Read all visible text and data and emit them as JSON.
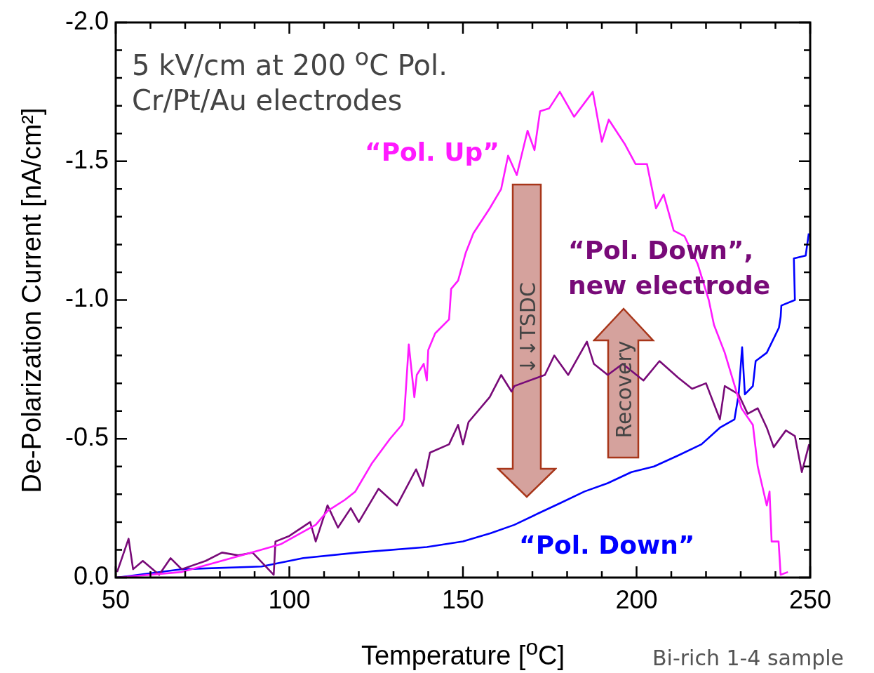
{
  "chart_data": {
    "type": "line",
    "xlabel": "Temperature [$^{o}$C]",
    "ylabel": "De-Polarization Current [nA/cm²]",
    "annotations": [
      "5 kV/cm at 200 $^{o}$C Pol.",
      "Cr/Pt/Au electrodes",
      "↓↓TSDC",
      "Recovery",
      "Bi-rich 1-4 sample"
    ],
    "xlim": [
      50,
      250
    ],
    "ylim": [
      0,
      -2
    ],
    "xticks": [
      50,
      {
        "value": 60,
        "label": null
      },
      {
        "value": 70,
        "label": null
      },
      {
        "value": 80,
        "label": null
      },
      {
        "value": 90,
        "label": null
      },
      100,
      {
        "value": 110,
        "label": null
      },
      {
        "value": 120,
        "label": null
      },
      {
        "value": 130,
        "label": null
      },
      {
        "value": 140,
        "label": null
      },
      150,
      {
        "value": 160,
        "label": null
      },
      {
        "value": 170,
        "label": null
      },
      {
        "value": 180,
        "label": null
      },
      {
        "value": 190,
        "label": null
      },
      200,
      {
        "value": 210,
        "label": null
      },
      {
        "value": 220,
        "label": null
      },
      {
        "value": 230,
        "label": null
      },
      {
        "value": 240,
        "label": null
      },
      250
    ],
    "yticks": [
      {
        "value": 0,
        "label": "0.0"
      },
      {
        "value": -0.1,
        "label": null
      },
      {
        "value": -0.2,
        "label": null
      },
      {
        "value": -0.3,
        "label": null
      },
      {
        "value": -0.4,
        "label": null
      },
      {
        "value": -0.5,
        "label": "-0.5"
      },
      {
        "value": -0.6,
        "label": null
      },
      {
        "value": -0.7,
        "label": null
      },
      {
        "value": -0.8,
        "label": null
      },
      {
        "value": -0.9,
        "label": null
      },
      {
        "value": -1,
        "label": "-1.0"
      },
      {
        "value": -1.1,
        "label": null
      },
      {
        "value": -1.2,
        "label": null
      },
      {
        "value": -1.3,
        "label": null
      },
      {
        "value": -1.4,
        "label": null
      },
      {
        "value": -1.5,
        "label": "-1.5"
      },
      {
        "value": -1.6,
        "label": null
      },
      {
        "value": -1.7,
        "label": null
      },
      {
        "value": -1.8,
        "label": null
      },
      {
        "value": -1.9,
        "label": null
      },
      {
        "value": -2,
        "label": "-2.0"
      }
    ],
    "grid": false,
    "legend": false,
    "marker": "none",
    "series": [
      {
        "name": "“Pol. Up”",
        "color": "#ff1aff",
        "x": [
          50.4,
          69,
          89,
          97.5,
          107.6,
          111,
          116,
          119,
          123.7,
          129,
          132.4,
          133,
          134.4,
          136,
          136.7,
          138.7,
          139.6,
          140,
          142,
          146,
          146.6,
          148.6,
          150.8,
          153,
          157.7,
          161,
          163,
          165.5,
          168.6,
          170.6,
          172.2,
          174.8,
          177.9,
          182,
          187.4,
          190,
          192,
          196.7,
          199.7,
          203,
          205.6,
          207.8,
          210.7,
          213.8,
          217.6,
          220.8,
          222.3,
          225.4,
          227.8,
          230.2,
          233.5,
          234.9,
          237.5,
          238.3,
          238.9,
          240.9,
          241.5,
          243.6
        ],
        "values": [
          0,
          -0.02,
          -0.09,
          -0.12,
          -0.19,
          -0.24,
          -0.28,
          -0.31,
          -0.41,
          -0.5,
          -0.55,
          -0.57,
          -0.84,
          -0.65,
          -0.73,
          -0.77,
          -0.71,
          -0.82,
          -0.88,
          -0.93,
          -1.04,
          -1.07,
          -1.17,
          -1.24,
          -1.33,
          -1.4,
          -1.52,
          -1.45,
          -1.61,
          -1.54,
          -1.68,
          -1.69,
          -1.75,
          -1.66,
          -1.75,
          -1.57,
          -1.65,
          -1.56,
          -1.49,
          -1.49,
          -1.33,
          -1.38,
          -1.25,
          -1.23,
          -1.13,
          -1,
          -0.91,
          -0.81,
          -0.71,
          -0.61,
          -0.55,
          -0.4,
          -0.26,
          -0.31,
          -0.13,
          -0.13,
          -0.01,
          -0.02
        ]
      },
      {
        "name": "“Pol. Down”, new electrode",
        "color": "#780a78",
        "x": [
          50.4,
          53.7,
          55,
          57.8,
          62.5,
          65.8,
          69,
          75.9,
          80.6,
          85.3,
          89.4,
          95.5,
          96,
          100,
          106,
          107.6,
          111,
          114,
          117.7,
          120,
          125.7,
          128.3,
          131,
          136.5,
          138.5,
          140.5,
          146,
          148.6,
          150,
          151.6,
          157.7,
          161,
          164,
          164.8,
          173.6,
          176.3,
          180.3,
          185.7,
          187.7,
          191.7,
          196,
          202,
          206.6,
          212,
          216,
          220,
          224,
          225.4,
          229.4,
          232,
          234.9,
          237.5,
          239.5,
          243,
          245.6,
          247.6,
          249.7
        ],
        "values": [
          -0.02,
          -0.14,
          -0.03,
          -0.06,
          -0.01,
          -0.07,
          -0.03,
          -0.06,
          -0.09,
          -0.08,
          -0.09,
          -0.01,
          -0.13,
          -0.15,
          -0.2,
          -0.13,
          -0.26,
          -0.18,
          -0.25,
          -0.2,
          -0.32,
          -0.29,
          -0.26,
          -0.39,
          -0.33,
          -0.45,
          -0.48,
          -0.55,
          -0.48,
          -0.56,
          -0.65,
          -0.73,
          -0.67,
          -0.69,
          -0.73,
          -0.8,
          -0.73,
          -0.85,
          -0.77,
          -0.73,
          -0.77,
          -0.71,
          -0.78,
          -0.72,
          -0.68,
          -0.7,
          -0.57,
          -0.69,
          -0.66,
          -0.59,
          -0.61,
          -0.54,
          -0.47,
          -0.53,
          -0.51,
          -0.38,
          -0.48
        ]
      },
      {
        "name": "“Pol. Down”",
        "color": "#0000ff",
        "x": [
          50.4,
          69,
          92,
          96,
          104,
          119.7,
          139.6,
          150,
          158,
          164.8,
          171.5,
          178.3,
          185,
          191.7,
          198.5,
          205,
          212,
          218.7,
          224,
          228.2,
          229.4,
          230.4,
          231.2,
          233.5,
          234.3,
          237.5,
          241,
          241.5,
          241.7,
          245.6,
          245.3,
          248.7,
          249.6
        ],
        "values": [
          0,
          -0.03,
          -0.04,
          -0.05,
          -0.07,
          -0.09,
          -0.11,
          -0.13,
          -0.16,
          -0.19,
          -0.23,
          -0.27,
          -0.31,
          -0.34,
          -0.38,
          -0.4,
          -0.44,
          -0.48,
          -0.54,
          -0.57,
          -0.66,
          -0.83,
          -0.66,
          -0.69,
          -0.78,
          -0.81,
          -0.9,
          -0.94,
          -0.98,
          -1,
          -1.15,
          -1.16,
          -1.24
        ]
      }
    ]
  }
}
